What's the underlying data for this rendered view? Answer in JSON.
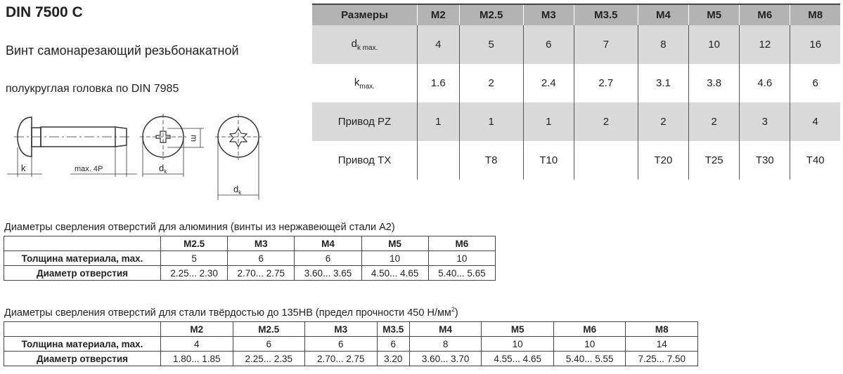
{
  "title": "DIN 7500 C",
  "subtitle_line1": "Винт самонарезающий резьбонакатной",
  "subtitle_line2": "полукруглая головка по DIN 7985",
  "drawing": {
    "label_k": "k",
    "label_4p": "max. 4P",
    "label_dk": "d",
    "label_dk_sub": "k",
    "label_m": "m"
  },
  "dims_table": {
    "header": [
      "Размеры",
      "M2",
      "M2.5",
      "M3",
      "M3.5",
      "M4",
      "M5",
      "M6",
      "M8"
    ],
    "rows": [
      {
        "label": "d",
        "label_sub": "k max.",
        "values": [
          "4",
          "5",
          "6",
          "7",
          "8",
          "10",
          "12",
          "16"
        ]
      },
      {
        "label": "k",
        "label_sub": "max.",
        "values": [
          "1.6",
          "2",
          "2.4",
          "2.7",
          "3.1",
          "3.8",
          "4.6",
          "6"
        ]
      },
      {
        "label": "Привод PZ",
        "values": [
          "1",
          "1",
          "1",
          "2",
          "2",
          "2",
          "3",
          "4"
        ]
      },
      {
        "label": "Привод TX",
        "values": [
          "",
          "T8",
          "T10",
          "",
          "T20",
          "T25",
          "T30",
          "T40"
        ]
      }
    ]
  },
  "aluminium": {
    "caption": "Диаметры сверления отверстий для алюминия (винты из нержавеющей стали A2)",
    "header": [
      "",
      "M2.5",
      "M3",
      "M4",
      "M5",
      "M6"
    ],
    "rows": [
      {
        "label": "Толщина материала, max.",
        "values": [
          "5",
          "6",
          "6",
          "10",
          "10"
        ]
      },
      {
        "label": "Диаметр отверстия",
        "values": [
          "2.25... 2.30",
          "2.70... 2.75",
          "3.60... 3.65",
          "4.50... 4.65",
          "5.40... 5.65"
        ]
      }
    ]
  },
  "steel": {
    "caption": "Диаметры сверления отверстий для стали твёрдостью до 135HB (предел прочности 450 Н/мм",
    "caption_sup": "2",
    "caption_end": ")",
    "header": [
      "",
      "M2",
      "M2.5",
      "M3",
      "M3.5",
      "M4",
      "M5",
      "M6",
      "M8"
    ],
    "rows": [
      {
        "label": "Толщина материала, max.",
        "values": [
          "4",
          "6",
          "6",
          "6",
          "8",
          "10",
          "10",
          "14"
        ]
      },
      {
        "label": "Диаметр отверстия",
        "values": [
          "1.80... 1.85",
          "2.25... 2.35",
          "2.70... 2.75",
          "3.20",
          "3.60... 3.70",
          "4.55... 4.65",
          "5.40... 5.55",
          "7.25... 7.50"
        ]
      }
    ]
  }
}
